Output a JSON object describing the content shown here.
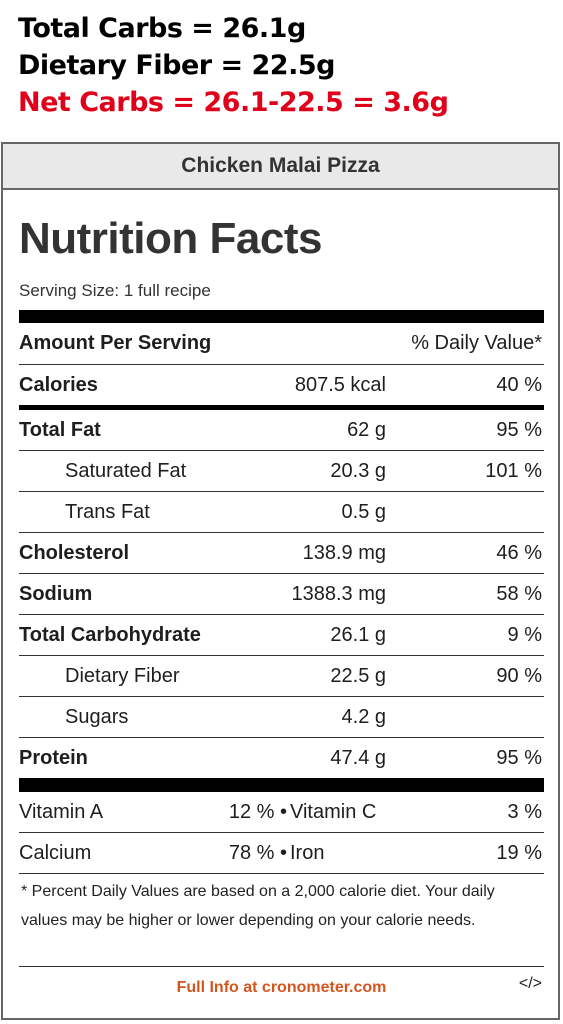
{
  "notes": {
    "total_carbs": "Total Carbs = 26.1g",
    "dietary_fiber": "Dietary Fiber = 22.5g",
    "net_carbs": "Net Carbs = 26.1-22.5 = 3.6g"
  },
  "label": {
    "recipe_name": "Chicken Malai Pizza",
    "title": "Nutrition Facts",
    "serving_size": "Serving Size: 1 full recipe",
    "amount_per_serving": "Amount Per Serving",
    "daily_value_header": "% Daily Value*",
    "calories": {
      "name": "Calories",
      "amount": "807.5 kcal",
      "dv": "40 %"
    },
    "nutrients": [
      {
        "name": "Total Fat",
        "amount": "62 g",
        "dv": "95 %"
      },
      {
        "name": "Saturated Fat",
        "amount": "20.3 g",
        "dv": "101 %"
      },
      {
        "name": "Trans Fat",
        "amount": "0.5 g",
        "dv": ""
      },
      {
        "name": "Cholesterol",
        "amount": "138.9 mg",
        "dv": "46 %"
      },
      {
        "name": "Sodium",
        "amount": "1388.3 mg",
        "dv": "58 %"
      },
      {
        "name": "Total Carbohydrate",
        "amount": "26.1 g",
        "dv": "9 %"
      },
      {
        "name": "Dietary Fiber",
        "amount": "22.5 g",
        "dv": "90 %"
      },
      {
        "name": "Sugars",
        "amount": "4.2 g",
        "dv": ""
      },
      {
        "name": "Protein",
        "amount": "47.4 g",
        "dv": "95 %"
      }
    ],
    "vitamins": [
      {
        "name1": "Vitamin A",
        "pct1": "12 % •",
        "name2": "Vitamin C",
        "pct2": "3 %"
      },
      {
        "name1": "Calcium",
        "pct1": "78 % •",
        "name2": "Iron",
        "pct2": "19 %"
      }
    ],
    "footnote": "* Percent Daily Values are based on a 2,000 calorie diet. Your daily values may be higher or lower depending on your calorie needs.",
    "full_info_link": "Full Info at cronometer.com",
    "embed_icon": "</>"
  }
}
